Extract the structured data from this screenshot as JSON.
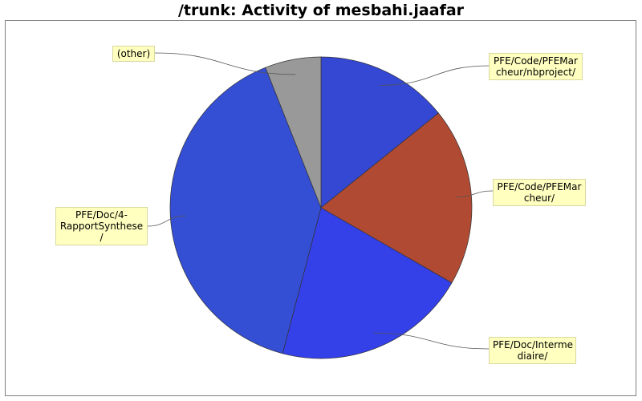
{
  "chart_data": {
    "type": "pie",
    "title": "/trunk: Activity of mesbahi.jaafar",
    "slices": [
      {
        "label": "PFE/Code/PFEMar\ncheur/nbproject/",
        "value": 14.2,
        "color": "#3448d4"
      },
      {
        "label": "PFE/Code/PFEMar\ncheur/",
        "value": 19.1,
        "color": "#b04a33"
      },
      {
        "label": "PFE/Doc/Interme\ndiaire/",
        "value": 20.8,
        "color": "#3440e8"
      },
      {
        "label": "PFE/Doc/4-\nRapportSynthese\n/",
        "value": 39.9,
        "color": "#344ed4"
      },
      {
        "label": "(other)",
        "value": 6.0,
        "color": "#999999"
      }
    ],
    "legend": "none"
  }
}
